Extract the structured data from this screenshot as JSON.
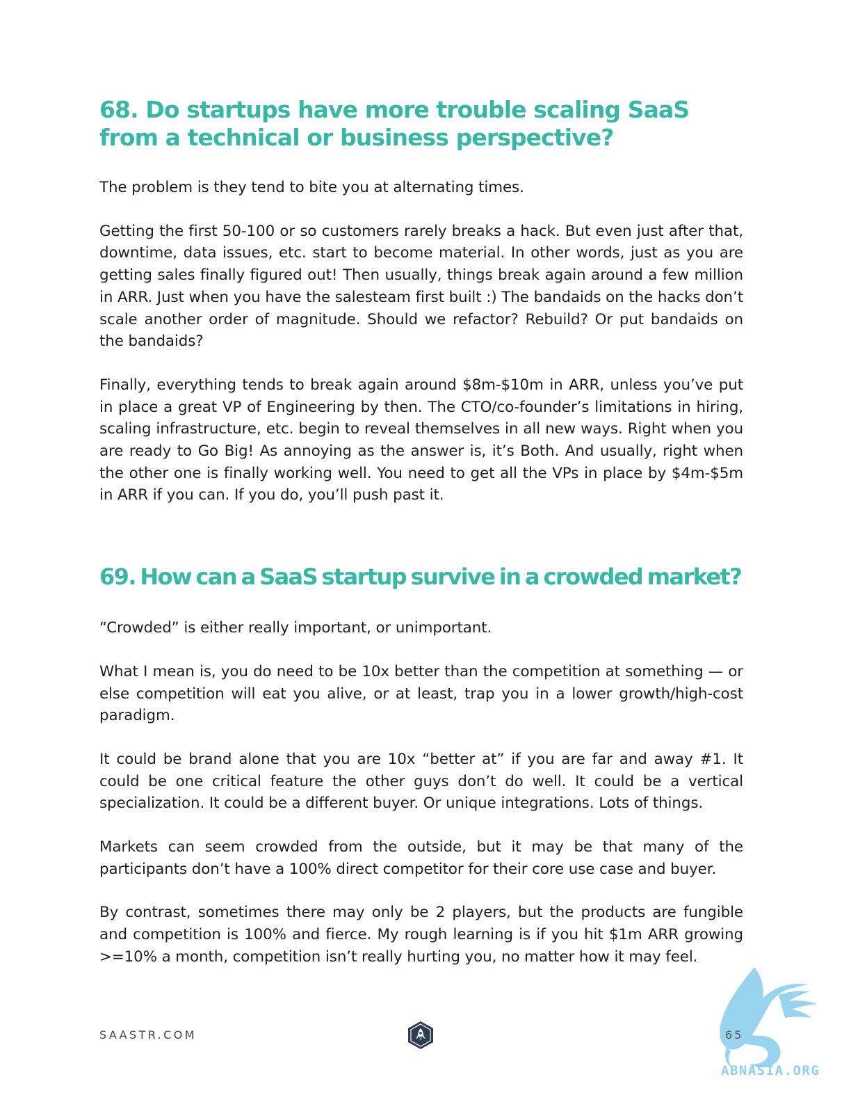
{
  "q68": {
    "title": "68. Do startups have more trouble scaling SaaS from a technical or business perspective?",
    "paragraphs": [
      "The problem is they tend to bite you at alternating times.",
      "Getting the first 50-100 or so customers rarely breaks a hack. But even just after that, downtime, data issues, etc. start to become material. In other words, just as you are getting sales finally figured out! Then usually, things break again around a few million in ARR. Just when you have the salesteam first built :) The bandaids on the hacks don’t scale another order of magnitude. Should we refactor? Rebuild? Or put bandaids on the bandaids?",
      "Finally, everything tends to break again around $8m-$10m in ARR, unless you’ve put in place a great VP of Engineering by then. The CTO/co-founder’s limitations in hiring, scaling infrastructure, etc. begin to reveal themselves in all new ways. Right when you are ready to Go Big! As annoying as the answer is, it’s Both. And usually, right when the other one is finally working well. You need to get all the VPs in place by $4m-$5m in ARR if you can. If you do, you’ll push past it."
    ]
  },
  "q69": {
    "title": "69. How can a SaaS startup survive in a crowded market?",
    "paragraphs": [
      "“Crowded” is either really important, or unimportant.",
      "What I mean is, you do need to be 10x better than the competition at something — or else competition will eat you alive, or at least, trap you in a lower growth/high-cost paradigm.",
      "It could be brand alone that you are 10x “better at” if you are far and away #1. It could be one critical feature the other guys don’t do well. It could be a vertical specialization. It could be a different buyer. Or unique integrations. Lots of things.",
      "Markets can seem crowded from the outside, but it may be that many of the participants don’t have a 100% direct competitor for their core use case and buyer.",
      "By contrast, sometimes there may only be 2 players, but the products are fungible and competition is 100% and fierce. My rough learning is if you hit $1m ARR growing >=10% a month, competition isn’t really hurting you, no matter how it may feel."
    ]
  },
  "footer": {
    "site": "SAASTR.COM",
    "page_number": "65",
    "logo_icon": "rocket-icon"
  },
  "watermark": {
    "text": "ABNASIA.ORG",
    "icon": "griffin-icon"
  },
  "colors": {
    "heading": "#35b8a6",
    "body_text": "#1e1e1e",
    "logo_bg": "#2e3b4e",
    "watermark": "#8fd0ee"
  }
}
